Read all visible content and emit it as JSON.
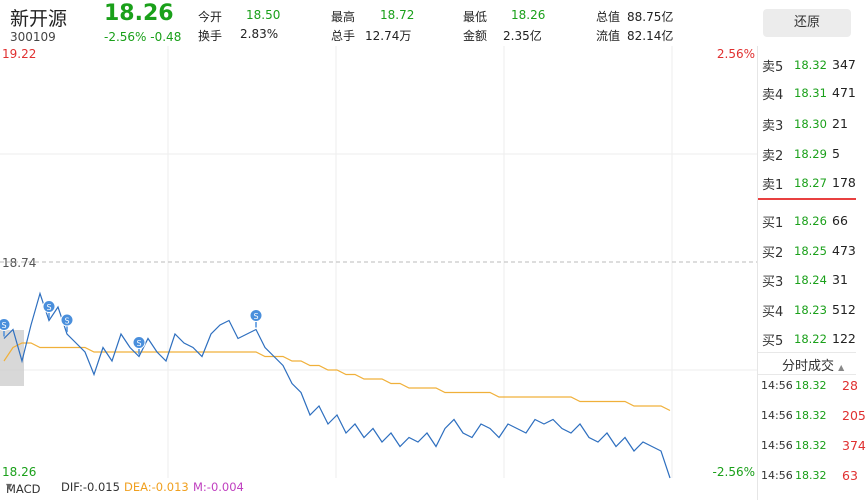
{
  "stock": {
    "name": "新开源",
    "code": "300109",
    "price": "18.26",
    "change_pct": "-2.56%",
    "change": "-0.48"
  },
  "stats": {
    "open_label": "今开",
    "open": "18.50",
    "turnover_label": "换手",
    "turnover": "2.83%",
    "high_label": "最高",
    "high": "18.72",
    "volume_label": "总手",
    "volume": "12.74万",
    "low_label": "最低",
    "low": "18.26",
    "amount_label": "金额",
    "amount": "2.35亿",
    "mcap_label": "总值",
    "mcap": "88.75亿",
    "float_label": "流值",
    "float": "82.14亿"
  },
  "restore_button": "还原",
  "chart_data": {
    "type": "line",
    "y_left_top": "19.22",
    "y_left_mid": "18.74",
    "y_left_bottom": "18.26",
    "y_right_top": "2.56%",
    "y_right_bottom": "-2.56%",
    "ylim": [
      18.26,
      19.22
    ],
    "reference_price": 18.74,
    "series": [
      {
        "values": [
          18.57,
          18.59,
          18.52,
          18.6,
          18.67,
          18.61,
          18.64,
          18.58,
          18.56,
          18.54,
          18.49,
          18.55,
          18.52,
          18.58,
          18.55,
          18.53,
          18.57,
          18.54,
          18.52,
          18.58,
          18.56,
          18.55,
          18.53,
          18.58,
          18.6,
          18.61,
          18.57,
          18.58,
          18.59,
          18.55,
          18.53,
          18.51,
          18.47,
          18.45,
          18.4,
          18.42,
          18.38,
          18.4,
          18.36,
          18.38,
          18.35,
          18.37,
          18.34,
          18.36,
          18.33,
          18.35,
          18.34,
          18.36,
          18.33,
          18.37,
          18.39,
          18.36,
          18.35,
          18.38,
          18.37,
          18.35,
          18.38,
          18.37,
          18.36,
          18.39,
          18.38,
          18.39,
          18.37,
          18.36,
          18.38,
          18.35,
          18.34,
          18.36,
          18.33,
          18.35,
          18.32,
          18.34,
          18.33,
          18.32,
          18.26
        ]
      },
      {
        "values": [
          18.52,
          18.55,
          18.56,
          18.56,
          18.55,
          18.55,
          18.55,
          18.55,
          18.55,
          18.55,
          18.54,
          18.54,
          18.54,
          18.54,
          18.54,
          18.54,
          18.54,
          18.54,
          18.54,
          18.54,
          18.54,
          18.54,
          18.54,
          18.54,
          18.54,
          18.54,
          18.54,
          18.54,
          18.54,
          18.53,
          18.53,
          18.53,
          18.52,
          18.52,
          18.51,
          18.51,
          18.5,
          18.5,
          18.49,
          18.49,
          18.48,
          18.48,
          18.48,
          18.47,
          18.47,
          18.46,
          18.46,
          18.46,
          18.46,
          18.45,
          18.45,
          18.45,
          18.45,
          18.45,
          18.45,
          18.44,
          18.44,
          18.44,
          18.44,
          18.44,
          18.44,
          18.44,
          18.44,
          18.44,
          18.43,
          18.43,
          18.43,
          18.43,
          18.43,
          18.43,
          18.42,
          18.42,
          18.42,
          18.42,
          18.41
        ]
      }
    ],
    "markers": [
      {
        "label": "S",
        "index": 0
      },
      {
        "label": "S",
        "index": 5
      },
      {
        "label": "S",
        "index": 7
      },
      {
        "label": "S",
        "index": 15
      },
      {
        "label": "S",
        "index": 28
      }
    ]
  },
  "order_book": {
    "sells": [
      {
        "label": "卖5",
        "price": "18.32",
        "qty": "347"
      },
      {
        "label": "卖4",
        "price": "18.31",
        "qty": "471"
      },
      {
        "label": "卖3",
        "price": "18.30",
        "qty": "21"
      },
      {
        "label": "卖2",
        "price": "18.29",
        "qty": "5"
      },
      {
        "label": "卖1",
        "price": "18.27",
        "qty": "178"
      }
    ],
    "buys": [
      {
        "label": "买1",
        "price": "18.26",
        "qty": "66"
      },
      {
        "label": "买2",
        "price": "18.25",
        "qty": "473"
      },
      {
        "label": "买3",
        "price": "18.24",
        "qty": "31"
      },
      {
        "label": "买4",
        "price": "18.23",
        "qty": "512"
      },
      {
        "label": "买5",
        "price": "18.22",
        "qty": "122"
      }
    ]
  },
  "trades": {
    "title": "分时成交",
    "arrow": "▲",
    "rows": [
      {
        "time": "14:56",
        "price": "18.32",
        "qty": "28"
      },
      {
        "time": "14:56",
        "price": "18.32",
        "qty": "205"
      },
      {
        "time": "14:56",
        "price": "18.32",
        "qty": "374"
      },
      {
        "time": "14:56",
        "price": "18.32",
        "qty": "63"
      }
    ]
  },
  "macd": {
    "label": "MACD",
    "arrow": "▼",
    "dif": "DIF:-0.015",
    "dea": "DEA:-0.013",
    "m": "M:-0.004"
  },
  "colors": {
    "up": "#e03030",
    "down": "#1aa01a",
    "price_line": "#2e6fbf",
    "avg_line": "#f0b03a"
  }
}
